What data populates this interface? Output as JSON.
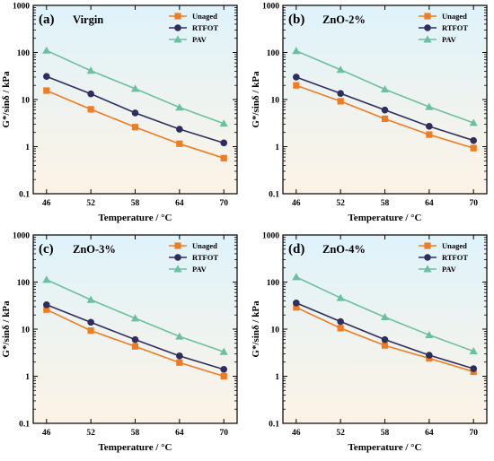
{
  "figure": {
    "gradient_top": "#dff3fb",
    "gradient_bottom": "#fdf3e6"
  },
  "chart_data": [
    {
      "type": "line",
      "panel_tag": "(a)",
      "title": "Virgin",
      "xlabel": "Temperature / °C",
      "ylabel": "G*/sinδ / kPa",
      "x": [
        46,
        52,
        58,
        64,
        70
      ],
      "x_tick_labels": [
        "46",
        "52",
        "58",
        "64",
        "70"
      ],
      "y_scale": "log",
      "ylim": [
        0.1,
        1000
      ],
      "y_tick_labels": [
        "0.1",
        "1",
        "10",
        "100",
        "1000"
      ],
      "legend_position": "top-right",
      "series": [
        {
          "name": "Unaged",
          "color": "#f07c22",
          "marker": "square",
          "values": [
            15.5,
            6.2,
            2.6,
            1.15,
            0.57
          ]
        },
        {
          "name": "RTFOT",
          "color": "#2e2e5e",
          "marker": "circle",
          "values": [
            31,
            13.2,
            5.2,
            2.35,
            1.2
          ]
        },
        {
          "name": "PAV",
          "color": "#6cc0a2",
          "marker": "triangle",
          "values": [
            110,
            41,
            17,
            6.8,
            3.1
          ]
        }
      ]
    },
    {
      "type": "line",
      "panel_tag": "(b)",
      "title": "ZnO-2%",
      "xlabel": "Temperature / °C",
      "ylabel": "G*/sinδ / kPa",
      "x": [
        46,
        52,
        58,
        64,
        70
      ],
      "x_tick_labels": [
        "46",
        "52",
        "58",
        "64",
        "70"
      ],
      "y_scale": "log",
      "ylim": [
        0.1,
        1000
      ],
      "y_tick_labels": [
        "0.1",
        "1",
        "10",
        "100",
        "1000"
      ],
      "legend_position": "top-right",
      "series": [
        {
          "name": "Unaged",
          "color": "#f07c22",
          "marker": "square",
          "values": [
            20,
            9.2,
            3.9,
            1.8,
            0.93
          ]
        },
        {
          "name": "RTFOT",
          "color": "#2e2e5e",
          "marker": "circle",
          "values": [
            30,
            13.5,
            6,
            2.7,
            1.35
          ]
        },
        {
          "name": "PAV",
          "color": "#6cc0a2",
          "marker": "triangle",
          "values": [
            108,
            43,
            16.5,
            7,
            3.2
          ]
        }
      ]
    },
    {
      "type": "line",
      "panel_tag": "(c)",
      "title": "ZnO-3%",
      "xlabel": "Temperature / °C",
      "ylabel": "G*/sinδ / kPa",
      "x": [
        46,
        52,
        58,
        64,
        70
      ],
      "x_tick_labels": [
        "46",
        "52",
        "58",
        "64",
        "70"
      ],
      "y_scale": "log",
      "ylim": [
        0.1,
        1000
      ],
      "y_tick_labels": [
        "0.1",
        "1",
        "10",
        "100",
        "1000"
      ],
      "legend_position": "top-right",
      "series": [
        {
          "name": "Unaged",
          "color": "#f07c22",
          "marker": "square",
          "values": [
            26,
            9.3,
            4.3,
            1.95,
            1.0
          ]
        },
        {
          "name": "RTFOT",
          "color": "#2e2e5e",
          "marker": "circle",
          "values": [
            33,
            14,
            6,
            2.7,
            1.4
          ]
        },
        {
          "name": "PAV",
          "color": "#6cc0a2",
          "marker": "triangle",
          "values": [
            112,
            42,
            17,
            7,
            3.3
          ]
        }
      ]
    },
    {
      "type": "line",
      "panel_tag": "(d)",
      "title": "ZnO-4%",
      "xlabel": "Temperature / °C",
      "ylabel": "G*/sinδ / kPa",
      "x": [
        46,
        52,
        58,
        64,
        70
      ],
      "x_tick_labels": [
        "46",
        "52",
        "58",
        "64",
        "70"
      ],
      "y_scale": "log",
      "ylim": [
        0.1,
        1000
      ],
      "y_tick_labels": [
        "0.1",
        "1",
        "10",
        "100",
        "1000"
      ],
      "legend_position": "top-right",
      "series": [
        {
          "name": "Unaged",
          "color": "#f07c22",
          "marker": "square",
          "values": [
            29,
            10.5,
            4.5,
            2.4,
            1.25
          ]
        },
        {
          "name": "RTFOT",
          "color": "#2e2e5e",
          "marker": "circle",
          "values": [
            36,
            14.5,
            6,
            2.8,
            1.45
          ]
        },
        {
          "name": "PAV",
          "color": "#6cc0a2",
          "marker": "triangle",
          "values": [
            128,
            46,
            18,
            7.5,
            3.4
          ]
        }
      ]
    }
  ]
}
